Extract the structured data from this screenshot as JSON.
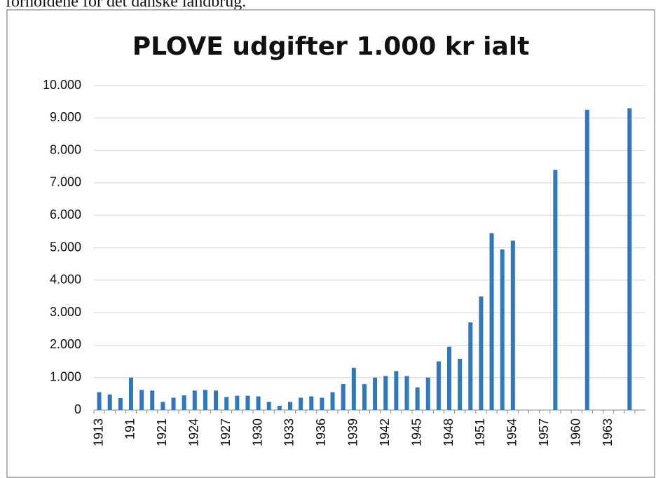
{
  "above_text": "forholdene for det danske landbrug.",
  "chart_data": {
    "type": "bar",
    "title": "PLOVE udgifter 1.000 kr ialt",
    "categories": [
      "1913",
      null,
      null,
      "191",
      null,
      null,
      "1921",
      null,
      null,
      "1924",
      null,
      null,
      "1927",
      null,
      null,
      "1930",
      null,
      null,
      "1933",
      null,
      null,
      "1936",
      null,
      null,
      "1939",
      null,
      null,
      "1942",
      null,
      null,
      "1945",
      null,
      null,
      "1948",
      null,
      null,
      "1951",
      null,
      null,
      "1954",
      null,
      null,
      "1957",
      null,
      null,
      "1960",
      null,
      null,
      "1963",
      null,
      null,
      null
    ],
    "values": [
      550,
      480,
      370,
      1000,
      620,
      600,
      250,
      380,
      450,
      600,
      620,
      600,
      400,
      440,
      440,
      420,
      250,
      130,
      250,
      380,
      420,
      380,
      550,
      800,
      1300,
      800,
      1000,
      1050,
      1200,
      1050,
      700,
      1000,
      1500,
      1950,
      1580,
      2700,
      3500,
      5450,
      4950,
      5220,
      null,
      null,
      null,
      7400,
      null,
      null,
      9250,
      null,
      null,
      null,
      9300,
      null
    ],
    "color": "#2f78c0",
    "ylim": [
      0,
      10000
    ],
    "yticks": [
      0,
      {
        "value": 1000,
        "label": "1.000"
      },
      {
        "value": 2000,
        "label": "2.000"
      },
      {
        "value": 3000,
        "label": "3.000"
      },
      {
        "value": 4000,
        "label": "4.000"
      },
      {
        "value": 5000,
        "label": "5.000"
      },
      {
        "value": 6000,
        "label": "6.000"
      },
      {
        "value": 7000,
        "label": "7.000"
      },
      {
        "value": 8000,
        "label": "8.000"
      },
      {
        "value": 9000,
        "label": "9.000"
      },
      {
        "value": 10000,
        "label": "10.000"
      }
    ],
    "grid": true
  }
}
